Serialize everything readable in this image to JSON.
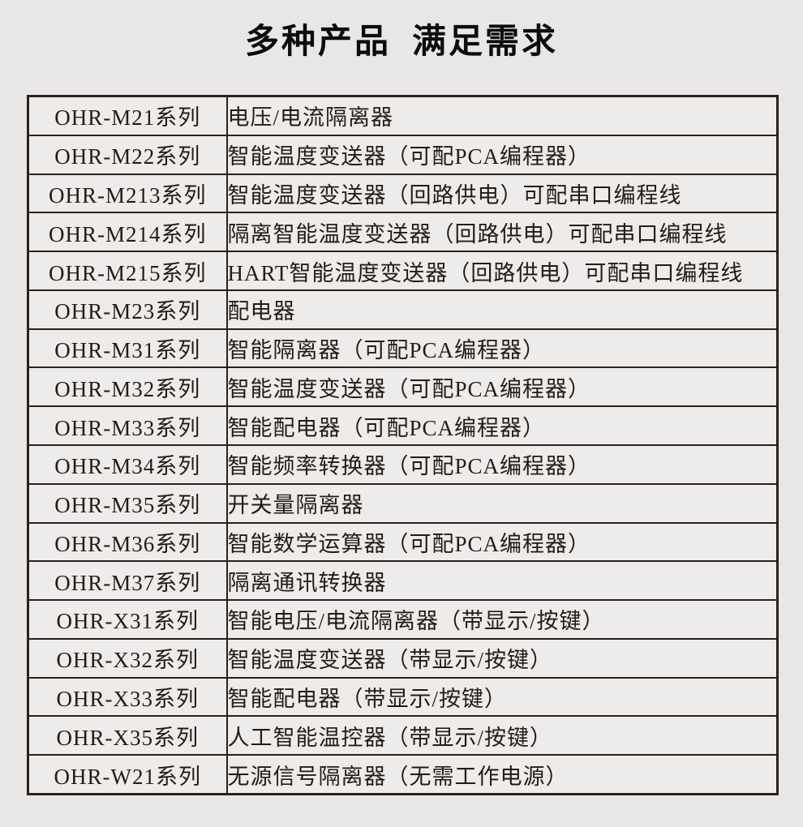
{
  "page": {
    "background": "#e9e7e6"
  },
  "title": {
    "part1": "多种产品",
    "part2": "满足需求",
    "color": "#0c0c0c"
  },
  "table": {
    "border_color": "#2a211f",
    "cell_background": "#edecea",
    "text_color": "#241b18",
    "columns": [
      "series",
      "description"
    ],
    "rows": [
      {
        "series": "OHR-M21系列",
        "description": "电压/电流隔离器"
      },
      {
        "series": "OHR-M22系列",
        "description": "智能温度变送器（可配PCA编程器）"
      },
      {
        "series": "OHR-M213系列",
        "description": "智能温度变送器（回路供电）可配串口编程线"
      },
      {
        "series": "OHR-M214系列",
        "description": "隔离智能温度变送器（回路供电）可配串口编程线"
      },
      {
        "series": "OHR-M215系列",
        "description": "HART智能温度变送器（回路供电）可配串口编程线"
      },
      {
        "series": "OHR-M23系列",
        "description": "配电器"
      },
      {
        "series": "OHR-M31系列",
        "description": "智能隔离器（可配PCA编程器）"
      },
      {
        "series": "OHR-M32系列",
        "description": "智能温度变送器（可配PCA编程器）"
      },
      {
        "series": "OHR-M33系列",
        "description": "智能配电器（可配PCA编程器）"
      },
      {
        "series": "OHR-M34系列",
        "description": "智能频率转换器（可配PCA编程器）"
      },
      {
        "series": "OHR-M35系列",
        "description": "开关量隔离器"
      },
      {
        "series": "OHR-M36系列",
        "description": "智能数学运算器（可配PCA编程器）"
      },
      {
        "series": "OHR-M37系列",
        "description": "隔离通讯转换器"
      },
      {
        "series": "OHR-X31系列",
        "description": "智能电压/电流隔离器（带显示/按键）"
      },
      {
        "series": "OHR-X32系列",
        "description": "智能温度变送器（带显示/按键）"
      },
      {
        "series": "OHR-X33系列",
        "description": "智能配电器（带显示/按键）"
      },
      {
        "series": "OHR-X35系列",
        "description": "人工智能温控器（带显示/按键）"
      },
      {
        "series": "OHR-W21系列",
        "description": "无源信号隔离器（无需工作电源）"
      }
    ]
  }
}
